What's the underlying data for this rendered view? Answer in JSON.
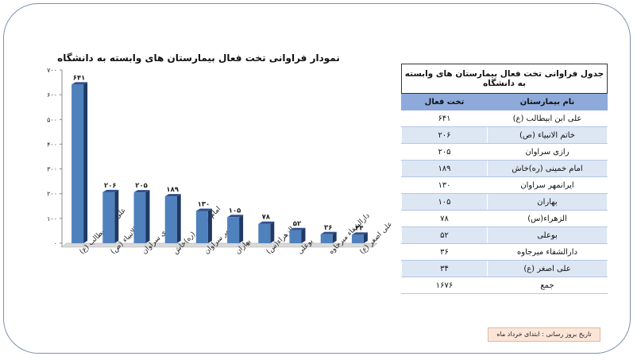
{
  "chart_data": {
    "type": "bar",
    "title": "نمودار فراوانی تخت فعال بیمارستان های وابسته به دانشگاه",
    "categories": [
      "علی ابن ابیطالب (ع)",
      "خاتم الانبیاء (ص)",
      "رازی سراوان",
      "امام خمینی (ره)خاش",
      "ایرانمهر سراوان",
      "بهاران",
      "الزهراء(س)",
      "بوعلی",
      "دارالشفاء میرجاوه",
      "علی اصغر (ع)"
    ],
    "values": [
      641,
      206,
      205,
      189,
      130,
      105,
      78,
      52,
      36,
      34
    ],
    "value_labels": [
      "۶۴۱",
      "۲۰۶",
      "۲۰۵",
      "۱۸۹",
      "۱۳۰",
      "۱۰۵",
      "۷۸",
      "۵۲",
      "۳۶",
      "۳۴"
    ],
    "ylim": [
      0,
      700
    ],
    "yticks": [
      0,
      100,
      200,
      300,
      400,
      500,
      600,
      700
    ],
    "ytick_labels": [
      "۰",
      "۱۰۰",
      "۲۰۰",
      "۳۰۰",
      "۴۰۰",
      "۵۰۰",
      "۶۰۰",
      "۷۰۰"
    ],
    "xlabel": "",
    "ylabel": "",
    "grid": false,
    "legend": "none",
    "bar_color": "#4f81bd",
    "bar_side_color": "#1f3864"
  },
  "table": {
    "title": "جدول فراوانی تخت فعال بیمارستان های وابسته به  دانشگاه",
    "col_name": "نام بیمارستان",
    "col_beds": "تخت فعال",
    "rows": [
      {
        "name": "علی ابن ابیطالب (ع)",
        "beds": "۶۴۱"
      },
      {
        "name": "خاتم الانبیاء (ص)",
        "beds": "۲۰۶"
      },
      {
        "name": "رازی سراوان",
        "beds": "۲۰۵"
      },
      {
        "name": "امام خمینی (ره)خاش",
        "beds": "۱۸۹"
      },
      {
        "name": "ایرانمهر سراوان",
        "beds": "۱۳۰"
      },
      {
        "name": "بهاران",
        "beds": "۱۰۵"
      },
      {
        "name": "الزهراء(س)",
        "beds": "۷۸"
      },
      {
        "name": "بوعلی",
        "beds": "۵۲"
      },
      {
        "name": "دارالشفاء میرجاوه",
        "beds": "۳۶"
      },
      {
        "name": "علی اصغر (ع)",
        "beds": "۳۴"
      },
      {
        "name": "جمع",
        "beds": "۱۶۷۶"
      }
    ]
  },
  "footnote": "تاریخ بروز رسانی : ابتدای   خرداد ماه"
}
